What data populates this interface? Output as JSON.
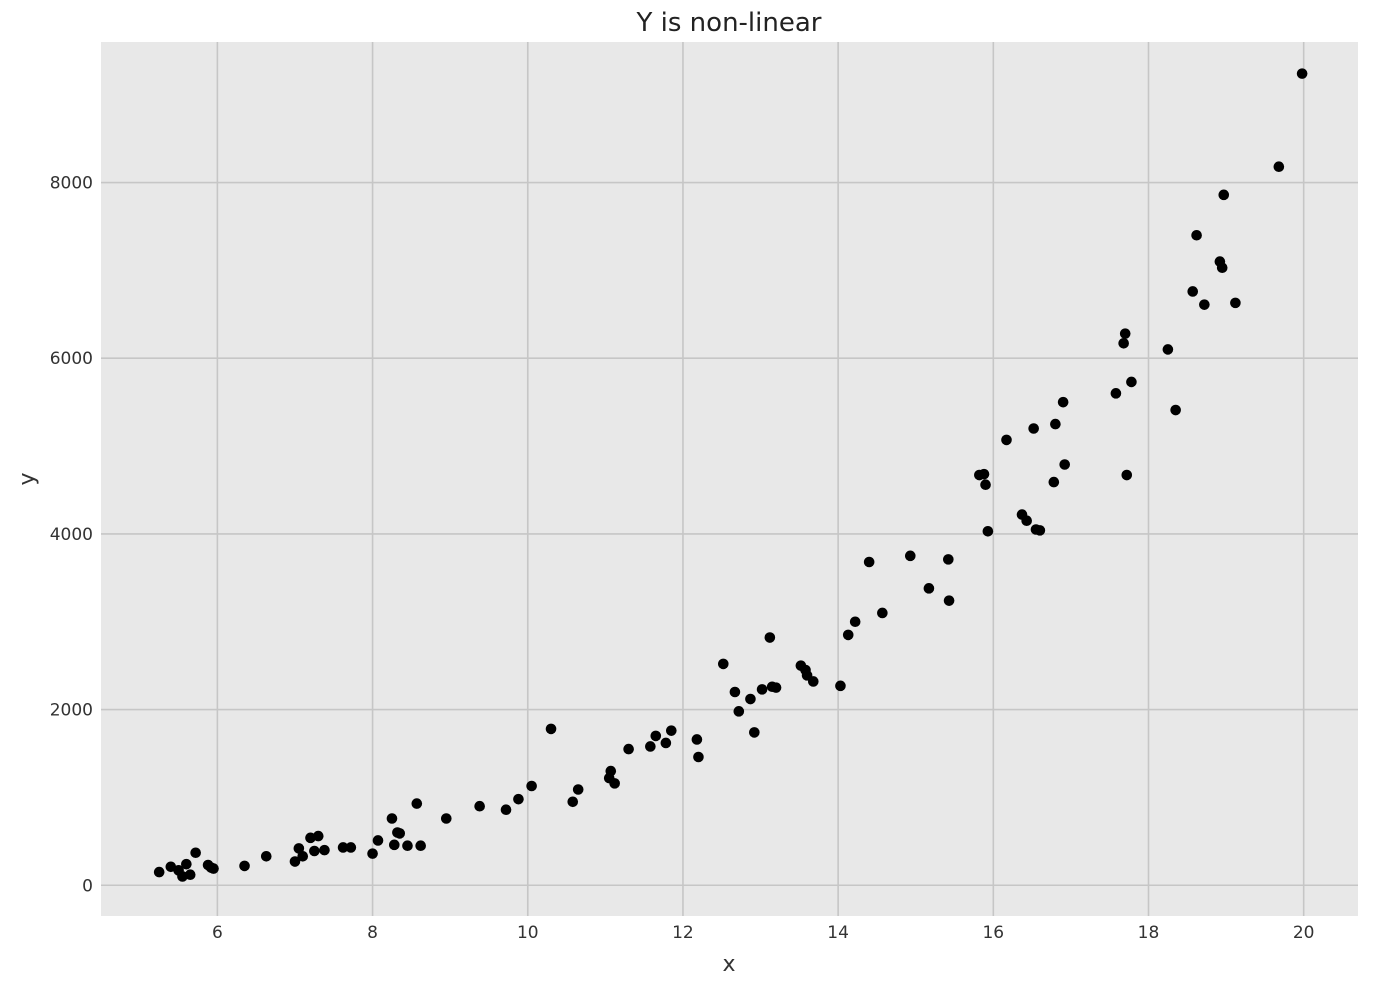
{
  "chart_data": {
    "type": "scatter",
    "title": "Y is non-linear",
    "xlabel": "x",
    "ylabel": "y",
    "xlim": [
      4.5,
      20.7
    ],
    "ylim": [
      -350,
      9600
    ],
    "xticks": [
      6,
      8,
      10,
      12,
      14,
      16,
      18,
      20
    ],
    "xtick_labels": [
      "6",
      "8",
      "10",
      "12",
      "14",
      "16",
      "18",
      "20"
    ],
    "yticks": [
      0,
      2000,
      4000,
      6000,
      8000
    ],
    "ytick_labels": [
      "0",
      "2000",
      "4000",
      "6000",
      "8000"
    ],
    "grid": true,
    "series": [
      {
        "x": [
          5.25,
          5.4,
          5.55,
          5.6,
          5.5,
          5.65,
          5.72,
          5.88,
          5.92,
          5.95,
          6.35,
          6.63,
          7.0,
          7.05,
          7.1,
          7.2,
          7.25,
          7.3,
          7.38,
          7.62,
          7.72,
          8.0,
          8.07,
          8.25,
          8.28,
          8.32,
          8.35,
          8.45,
          8.57,
          8.62,
          8.95,
          9.38,
          9.72,
          9.88,
          10.05,
          10.3,
          10.58,
          10.65,
          11.05,
          11.07,
          11.12,
          11.3,
          11.58,
          11.65,
          11.78,
          11.85,
          12.18,
          12.2,
          12.52,
          12.67,
          12.72,
          12.87,
          12.92,
          13.02,
          13.12,
          13.15,
          13.2,
          13.52,
          13.58,
          13.6,
          13.68,
          14.03,
          14.13,
          14.22,
          14.4,
          14.57,
          14.93,
          15.17,
          15.42,
          15.43,
          15.82,
          15.88,
          15.9,
          15.93,
          16.17,
          16.37,
          16.43,
          16.52,
          16.55,
          16.6,
          16.78,
          16.8,
          16.9,
          16.92,
          17.58,
          17.68,
          17.7,
          17.72,
          17.78,
          18.25,
          18.35,
          18.57,
          18.62,
          18.72,
          18.92,
          18.95,
          18.97,
          19.12,
          19.68,
          19.98
        ],
        "y": [
          150,
          210,
          100,
          240,
          170,
          120,
          370,
          230,
          200,
          190,
          220,
          330,
          270,
          420,
          330,
          540,
          390,
          560,
          400,
          430,
          430,
          360,
          510,
          760,
          460,
          600,
          590,
          450,
          930,
          450,
          760,
          900,
          860,
          980,
          1130,
          1780,
          950,
          1090,
          1220,
          1300,
          1160,
          1550,
          1580,
          1700,
          1620,
          1760,
          1660,
          1460,
          2520,
          2200,
          1980,
          2120,
          1740,
          2230,
          2820,
          2260,
          2250,
          2500,
          2450,
          2390,
          2320,
          2270,
          2850,
          3000,
          3680,
          3100,
          3750,
          3380,
          3710,
          3240,
          4670,
          4680,
          4560,
          4030,
          5070,
          4220,
          4150,
          5200,
          4050,
          4040,
          4590,
          5250,
          5500,
          4790,
          5600,
          6170,
          6280,
          4670,
          5730,
          6100,
          5410,
          6760,
          7400,
          6610,
          7100,
          7030,
          7860,
          6630,
          8180,
          9240
        ],
        "color": "#000000"
      }
    ],
    "colors": {
      "plot_background": "#e8e8e8",
      "grid": "#c6c6c6",
      "marker": "#000000"
    }
  }
}
